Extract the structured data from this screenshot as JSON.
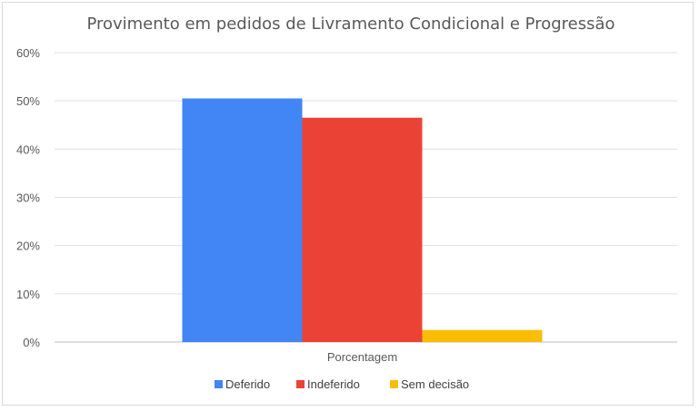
{
  "chart_data": {
    "type": "bar",
    "title": "Provimento em pedidos de Livramento Condicional e Progressão",
    "categories": [
      "Porcentagem"
    ],
    "series": [
      {
        "name": "Deferido",
        "values": [
          50.5
        ],
        "color": "#4285F4"
      },
      {
        "name": "Indeferido",
        "values": [
          46.5
        ],
        "color": "#EA4335"
      },
      {
        "name": "Sem decisão",
        "values": [
          2.5
        ],
        "color": "#FBBC04"
      }
    ],
    "ylim": [
      0,
      60
    ],
    "yticks": [
      "0%",
      "10%",
      "20%",
      "30%",
      "40%",
      "50%",
      "60%"
    ],
    "grid": true,
    "legend_position": "bottom",
    "xlabel": "",
    "ylabel": ""
  }
}
